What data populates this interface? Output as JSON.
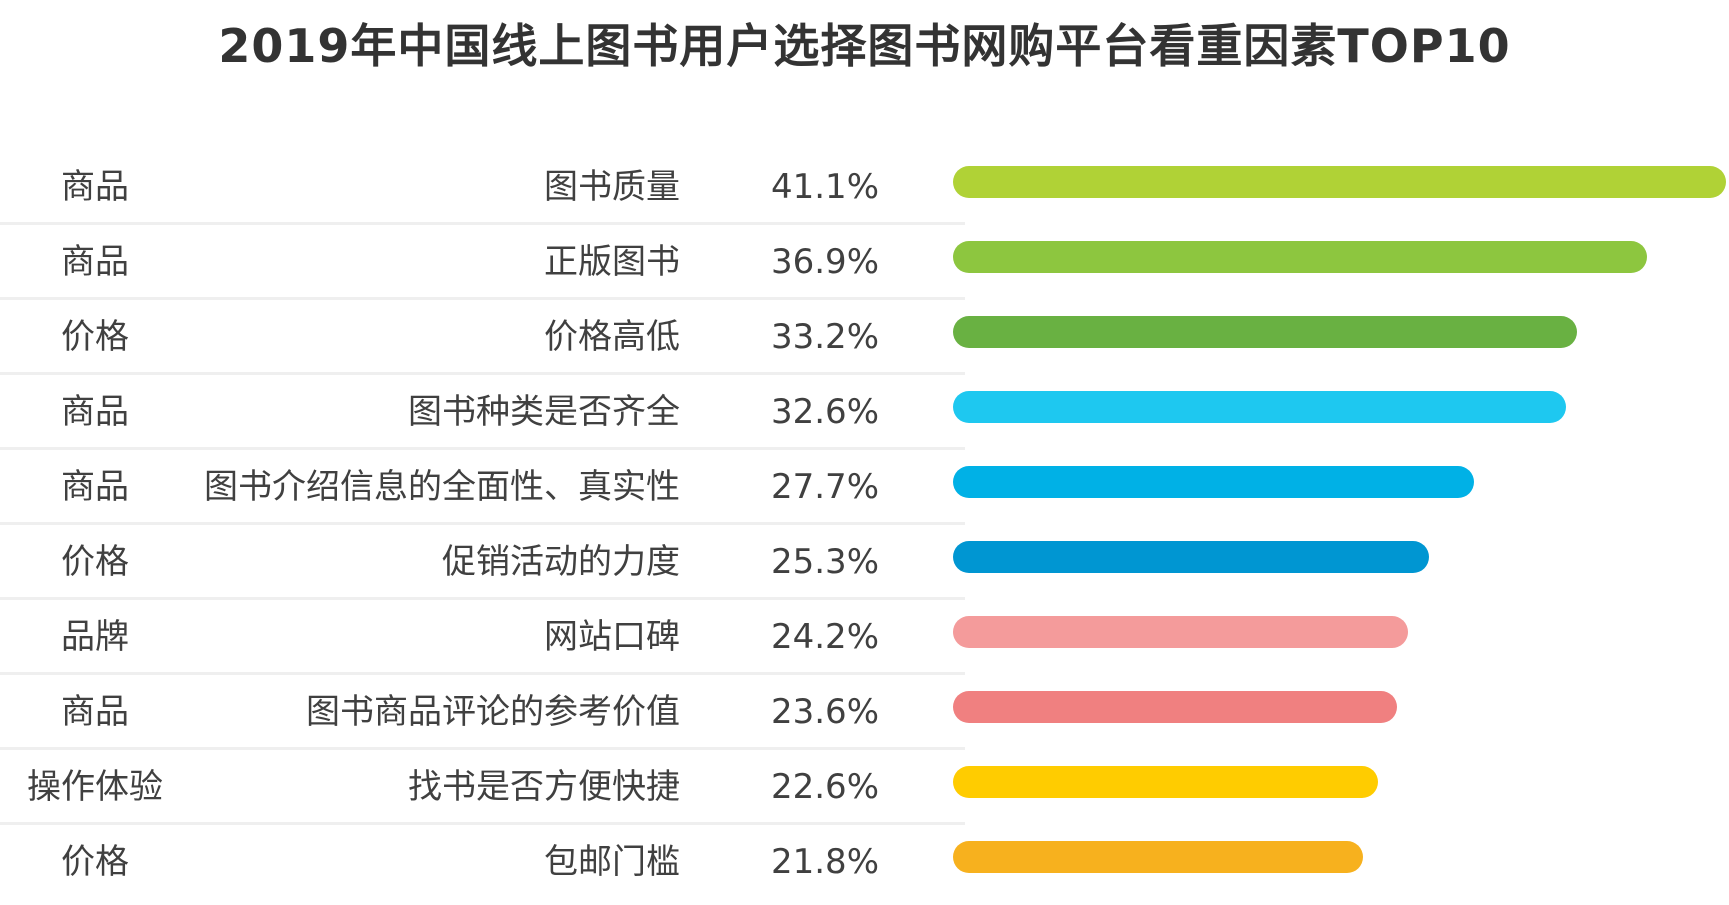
{
  "title": "2019年中国线上图书用户选择图书网购平台看重因素TOP10",
  "chart_data": {
    "type": "bar",
    "orientation": "horizontal",
    "title": "2019年中国线上图书用户选择图书网购平台看重因素TOP10",
    "xlabel": "",
    "ylabel": "",
    "xlim": [
      0,
      41.1
    ],
    "grid": false,
    "legend": "none",
    "rows": [
      {
        "category": "商品",
        "factor": "图书质量",
        "label": "41.1%",
        "value": 41.1,
        "color": "#b0d236"
      },
      {
        "category": "商品",
        "factor": "正版图书",
        "label": "36.9%",
        "value": 36.9,
        "color": "#8dc63f"
      },
      {
        "category": "价格",
        "factor": "价格高低",
        "label": "33.2%",
        "value": 33.2,
        "color": "#69b142"
      },
      {
        "category": "商品",
        "factor": "图书种类是否齐全",
        "label": "32.6%",
        "value": 32.6,
        "color": "#1ec8f0"
      },
      {
        "category": "商品",
        "factor": "图书介绍信息的全面性、真实性",
        "label": "27.7%",
        "value": 27.7,
        "color": "#00b1e6"
      },
      {
        "category": "价格",
        "factor": "促销活动的力度",
        "label": "25.3%",
        "value": 25.3,
        "color": "#0096d2"
      },
      {
        "category": "品牌",
        "factor": "网站口碑",
        "label": "24.2%",
        "value": 24.2,
        "color": "#f49b9b"
      },
      {
        "category": "商品",
        "factor": "图书商品评论的参考价值",
        "label": "23.6%",
        "value": 23.6,
        "color": "#f08080"
      },
      {
        "category": "操作体验",
        "factor": "找书是否方便快捷",
        "label": "22.6%",
        "value": 22.6,
        "color": "#ffcc00"
      },
      {
        "category": "价格",
        "factor": "包邮门槛",
        "label": "21.8%",
        "value": 21.8,
        "color": "#f7b11e"
      }
    ]
  }
}
